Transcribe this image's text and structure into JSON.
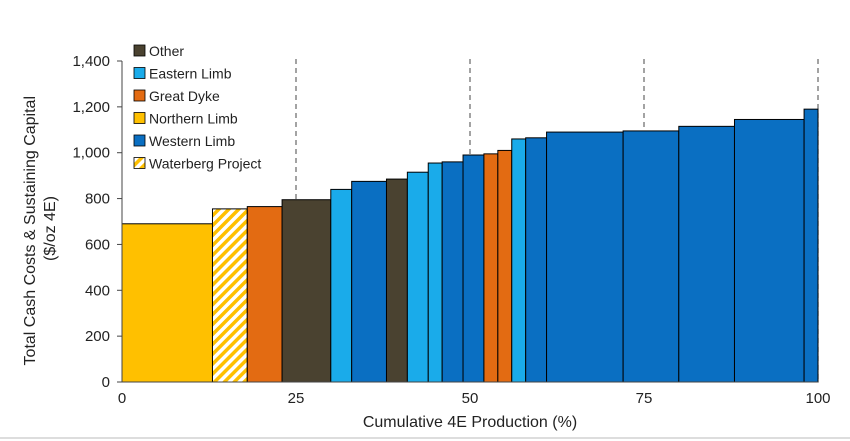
{
  "chart_data": {
    "type": "bar",
    "subtype": "cost-curve",
    "xlabel": "Cumulative 4E Production (%)",
    "ylabel_lines": [
      "Total Cash Costs & Sustaining Capital",
      "($/oz 4E)"
    ],
    "xlim": [
      0,
      100
    ],
    "ylim": [
      0,
      1400
    ],
    "xticks": [
      0,
      25,
      50,
      75,
      100
    ],
    "yticks": [
      0,
      200,
      400,
      600,
      800,
      1000,
      1200,
      1400
    ],
    "ytick_labels": [
      "0",
      "200",
      "400",
      "600",
      "800",
      "1,000",
      "1,200",
      "1,400"
    ],
    "reference_lines_x": [
      25,
      50,
      75,
      100
    ],
    "reference_line_style": "dashed",
    "grid": false,
    "legend_position": "top-left",
    "legend": [
      {
        "name": "Other",
        "color": "#4a4230",
        "pattern": "solid"
      },
      {
        "name": "Eastern Limb",
        "color": "#1aabea",
        "pattern": "solid"
      },
      {
        "name": "Great Dyke",
        "color": "#e36b12",
        "pattern": "solid"
      },
      {
        "name": "Northern Limb",
        "color": "#ffc000",
        "pattern": "solid"
      },
      {
        "name": "Western Limb",
        "color": "#0a6fc2",
        "pattern": "solid"
      },
      {
        "name": "Waterberg Project",
        "color": "#ffc000",
        "pattern": "hatched"
      }
    ],
    "bars": [
      {
        "x0": 0,
        "x1": 13,
        "value": 690,
        "group": "Northern Limb"
      },
      {
        "x0": 13,
        "x1": 18,
        "value": 755,
        "group": "Waterberg Project"
      },
      {
        "x0": 18,
        "x1": 23,
        "value": 765,
        "group": "Great Dyke"
      },
      {
        "x0": 23,
        "x1": 30,
        "value": 795,
        "group": "Other"
      },
      {
        "x0": 30,
        "x1": 33,
        "value": 840,
        "group": "Eastern Limb"
      },
      {
        "x0": 33,
        "x1": 38,
        "value": 875,
        "group": "Western Limb"
      },
      {
        "x0": 38,
        "x1": 41,
        "value": 885,
        "group": "Other"
      },
      {
        "x0": 41,
        "x1": 44,
        "value": 915,
        "group": "Eastern Limb"
      },
      {
        "x0": 44,
        "x1": 46,
        "value": 955,
        "group": "Eastern Limb"
      },
      {
        "x0": 46,
        "x1": 49,
        "value": 960,
        "group": "Western Limb"
      },
      {
        "x0": 49,
        "x1": 52,
        "value": 990,
        "group": "Western Limb"
      },
      {
        "x0": 52,
        "x1": 54,
        "value": 995,
        "group": "Great Dyke"
      },
      {
        "x0": 54,
        "x1": 56,
        "value": 1010,
        "group": "Great Dyke"
      },
      {
        "x0": 56,
        "x1": 58,
        "value": 1060,
        "group": "Eastern Limb"
      },
      {
        "x0": 58,
        "x1": 61,
        "value": 1065,
        "group": "Western Limb"
      },
      {
        "x0": 61,
        "x1": 72,
        "value": 1090,
        "group": "Western Limb"
      },
      {
        "x0": 72,
        "x1": 80,
        "value": 1095,
        "group": "Western Limb"
      },
      {
        "x0": 80,
        "x1": 88,
        "value": 1115,
        "group": "Western Limb"
      },
      {
        "x0": 88,
        "x1": 98,
        "value": 1145,
        "group": "Western Limb"
      },
      {
        "x0": 98,
        "x1": 100,
        "value": 1190,
        "group": "Western Limb"
      }
    ]
  }
}
